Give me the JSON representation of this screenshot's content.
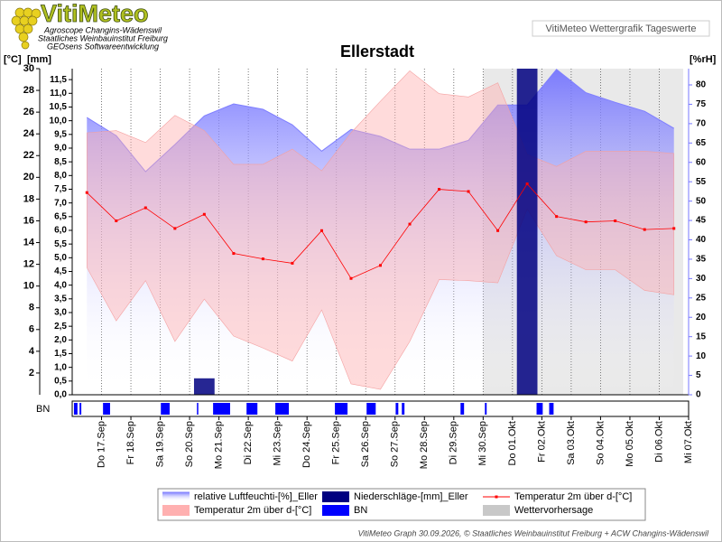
{
  "header": {
    "logo": "VitiMeteo",
    "lines": [
      "Agroscope Changins-Wädenswil",
      "Staatliches Weinbauinstitut Freiburg",
      "GEOsens Softwareentwicklung"
    ],
    "caption": "VitiMeteo Wettergrafik Tageswerte"
  },
  "footer": "VitiMeteo Graph 30.09.2026, © Staatliches Weinbauinstitut Freiburg + ACW Changins-Wädenswil",
  "chart_data": {
    "type": "line",
    "title": "Ellerstadt",
    "ylabel": "[°C]",
    "y3label": "[mm]",
    "y2label": "[%rH]",
    "categories": [
      "Do 17.Sep",
      "Fr 18.Sep",
      "Sa 19.Sep",
      "So 20.Sep",
      "Mo 21.Sep",
      "Di 22.Sep",
      "Mi 23.Sep",
      "Do 24.Sep",
      "Fr 25.Sep",
      "Sa 26.Sep",
      "So 27.Sep",
      "Mo 28.Sep",
      "Di 29.Sep",
      "Mi 30.Sep",
      "Do 01.Okt",
      "Fr 02.Okt",
      "Sa 03.Okt",
      "So 04.Okt",
      "Mo 05.Okt",
      "Di 06.Okt",
      "Mi 07.Okt"
    ],
    "ylim": [
      0,
      30
    ],
    "yticks": [
      2,
      4,
      6,
      8,
      10,
      12,
      14,
      16,
      18,
      20,
      22,
      24,
      26,
      28,
      30
    ],
    "y3lim": [
      0,
      11.9
    ],
    "y3ticks": [
      {
        "value": 0,
        "label": "0,0"
      },
      {
        "value": 0.5,
        "label": "0,5"
      },
      {
        "value": 1,
        "label": "1,0"
      },
      {
        "value": 1.5,
        "label": "1,5"
      },
      {
        "value": 2,
        "label": "2,0"
      },
      {
        "value": 2.5,
        "label": "2,5"
      },
      {
        "value": 3,
        "label": "3,0"
      },
      {
        "value": 3.5,
        "label": "3,5"
      },
      {
        "value": 4,
        "label": "4,0"
      },
      {
        "value": 4.5,
        "label": "4,5"
      },
      {
        "value": 5,
        "label": "5,0"
      },
      {
        "value": 5.5,
        "label": "5,5"
      },
      {
        "value": 6,
        "label": "6,0"
      },
      {
        "value": 6.5,
        "label": "6,5"
      },
      {
        "value": 7,
        "label": "7,0"
      },
      {
        "value": 7.5,
        "label": "7,5"
      },
      {
        "value": 8,
        "label": "8,0"
      },
      {
        "value": 8.5,
        "label": "8,5"
      },
      {
        "value": 9,
        "label": "9,0"
      },
      {
        "value": 9.5,
        "label": "9,5"
      },
      {
        "value": 10,
        "label": "10,0"
      },
      {
        "value": 10.5,
        "label": "10,5"
      },
      {
        "value": 11,
        "label": "11,0"
      },
      {
        "value": 11.5,
        "label": "11,5"
      }
    ],
    "y2lim": [
      0,
      84.2
    ],
    "y2ticks": [
      0,
      5,
      10,
      15,
      20,
      25,
      30,
      35,
      40,
      45,
      50,
      55,
      60,
      65,
      70,
      75,
      80
    ],
    "series": [
      {
        "name": "relative Luftfeuchti-[%]_Eller",
        "color": "#7f7fff",
        "axis": "y2",
        "values": [
          71.6,
          66.9,
          57.6,
          64.6,
          72.0,
          75.1,
          73.7,
          69.7,
          62.9,
          68.5,
          66.7,
          63.4,
          63.4,
          65.7,
          74.8,
          74.8,
          84.0,
          78.0,
          75.5,
          73.2,
          68.8
        ]
      },
      {
        "name": "Niederschläge-[mm]_Eller",
        "color": "#000080",
        "axis": "y3",
        "values": [
          0,
          0,
          0,
          0,
          0.6,
          0,
          0,
          0,
          0,
          0,
          0,
          0,
          0,
          0,
          0,
          11.9,
          0,
          0,
          0,
          0,
          0
        ]
      },
      {
        "name": "Temperatur 2m über d-[°C]",
        "color": "#ff0000",
        "values": [
          18.6,
          16.0,
          17.2,
          15.3,
          16.6,
          13.0,
          12.5,
          12.1,
          15.1,
          10.7,
          11.9,
          15.7,
          18.9,
          18.7,
          15.1,
          19.4,
          16.4,
          15.9,
          16.0,
          15.2,
          15.3
        ]
      },
      {
        "name": "Temperatur 2m über d-[°C]",
        "color": "#ffb0b0",
        "max": [
          24.1,
          24.3,
          23.2,
          25.7,
          24.3,
          21.2,
          21.2,
          22.6,
          20.6,
          24.1,
          27.0,
          29.8,
          27.7,
          27.4,
          28.7,
          22.1,
          21.0,
          22.4,
          22.4,
          22.4,
          22.2
        ],
        "min": [
          11.7,
          6.8,
          10.5,
          4.9,
          8.8,
          5.4,
          4.3,
          3.1,
          7.8,
          1.0,
          0.5,
          4.9,
          10.6,
          10.5,
          10.3,
          17.1,
          12.8,
          11.5,
          11.5,
          9.6,
          9.2
        ]
      }
    ],
    "bn": {
      "name": "BN",
      "color": "#0000ff",
      "periods": [
        [
          0.06,
          0.18
        ],
        [
          0.25,
          0.31
        ],
        [
          1.05,
          1.29
        ],
        [
          3.02,
          3.32
        ],
        [
          4.25,
          4.28
        ],
        [
          4.8,
          5.38
        ],
        [
          5.94,
          6.31
        ],
        [
          6.92,
          7.38
        ],
        [
          8.95,
          9.38
        ],
        [
          10.03,
          10.34
        ],
        [
          11.02,
          11.11
        ],
        [
          11.23,
          11.32
        ],
        [
          13.23,
          13.35
        ],
        [
          14.06,
          14.12
        ],
        [
          15.82,
          16.03
        ],
        [
          16.25,
          16.4
        ]
      ]
    },
    "forecast": {
      "name": "Wettervorhersage",
      "color": "#c8c8c8",
      "from": "Mi 30.Sep"
    }
  }
}
